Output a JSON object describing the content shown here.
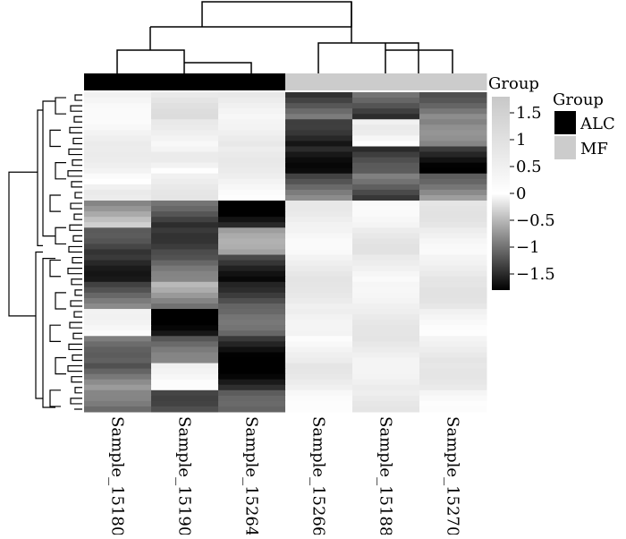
{
  "chart_data": {
    "type": "heatmap",
    "columns": [
      "Sample_15180",
      "Sample_15190",
      "Sample_15264",
      "Sample_15266",
      "Sample_15188",
      "Sample_15270"
    ],
    "column_groups": [
      "ALC",
      "ALC",
      "ALC",
      "MF",
      "MF",
      "MF"
    ],
    "annotation_bar_label": "Group",
    "legend": {
      "title": "Group",
      "entries": [
        {
          "label": "ALC",
          "color": "#000000"
        },
        {
          "label": "MF",
          "color": "#cccccc"
        }
      ]
    },
    "color_scale": {
      "min": -1.8,
      "max": 1.8,
      "ticks": [
        1.5,
        1,
        0.5,
        0,
        -0.5,
        -1,
        -1.5
      ],
      "tick_labels": [
        "1.5",
        "1",
        "0.5",
        "0",
        "−0.5",
        "−1",
        "−1.5"
      ],
      "low_color": "#000000",
      "mid_color": "#ffffff",
      "high_color": "#c8c8c8"
    },
    "row_blocks": [
      {
        "rows": 5,
        "values": [
          0.5,
          0.8,
          0.6,
          -1.2,
          -1.3,
          -0.9
        ]
      },
      {
        "rows": 5,
        "values": [
          0.4,
          0.4,
          0.7,
          -1.7,
          0.2,
          -1.1
        ]
      },
      {
        "rows": 5,
        "values": [
          0.3,
          0.2,
          0.4,
          -1.4,
          -1.5,
          -1.5
        ]
      },
      {
        "rows": 5,
        "values": [
          0.2,
          0.5,
          0.4,
          -1.1,
          -1.2,
          -0.8
        ]
      },
      {
        "rows": 5,
        "values": [
          -0.6,
          -1.3,
          -1.6,
          0.4,
          0.5,
          0.6
        ]
      },
      {
        "rows": 5,
        "values": [
          -1.5,
          -1.1,
          -0.9,
          0.5,
          0.6,
          0.5
        ]
      },
      {
        "rows": 5,
        "values": [
          -1.3,
          -1.2,
          -1.4,
          0.6,
          0.4,
          0.7
        ]
      },
      {
        "rows": 5,
        "values": [
          -1.1,
          -0.8,
          -1.2,
          0.5,
          0.6,
          0.6
        ]
      },
      {
        "rows": 5,
        "values": [
          0.1,
          -1.5,
          -1.3,
          0.7,
          0.5,
          0.4
        ]
      },
      {
        "rows": 5,
        "values": [
          -0.8,
          -1.2,
          -1.5,
          0.3,
          0.6,
          0.7
        ]
      },
      {
        "rows": 5,
        "values": [
          -1.0,
          0.2,
          -1.6,
          0.5,
          0.7,
          0.5
        ]
      },
      {
        "rows": 4,
        "values": [
          -1.2,
          -1.0,
          -1.4,
          0.4,
          0.5,
          0.3
        ]
      }
    ]
  }
}
